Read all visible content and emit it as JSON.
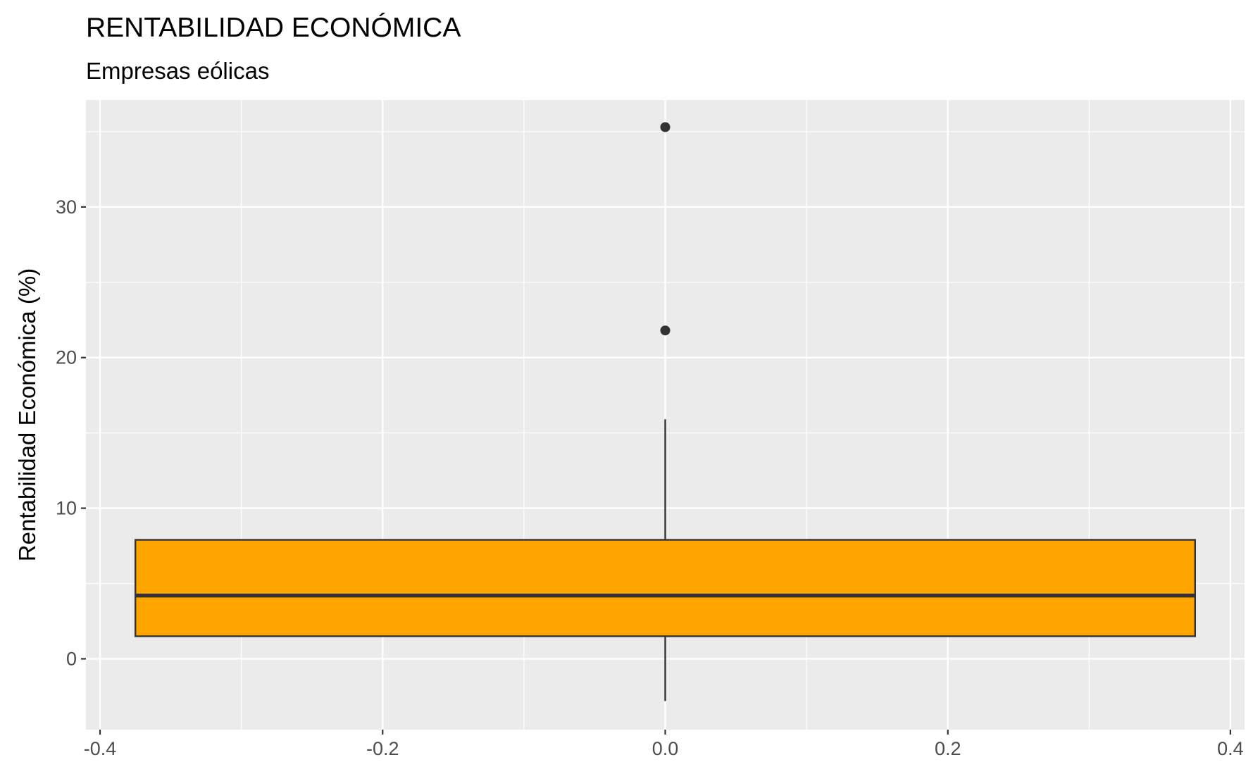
{
  "chart_data": {
    "type": "boxplot",
    "title": "RENTABILIDAD ECONÓMICA",
    "subtitle": "Empresas eólicas",
    "xlabel": "",
    "ylabel": "Rentabilidad Económica (%)",
    "xlim": [
      -0.41,
      0.41
    ],
    "ylim": [
      -4.7,
      37.1
    ],
    "x_ticks": [
      -0.4,
      -0.2,
      0.0,
      0.2,
      0.4
    ],
    "x_tick_labels": [
      "-0.4",
      "-0.2",
      "0.0",
      "0.2",
      "0.4"
    ],
    "y_ticks": [
      0,
      10,
      20,
      30
    ],
    "y_tick_labels": [
      "0",
      "10",
      "20",
      "30"
    ],
    "grid": true,
    "legend": "none",
    "box": {
      "x_center": 0.0,
      "x_min": -0.375,
      "x_max": 0.375,
      "q1": 1.5,
      "median": 4.2,
      "q3": 7.9,
      "whisker_low": -2.8,
      "whisker_high": 15.9
    },
    "outliers": [
      {
        "x": 0.0,
        "y": 21.8
      },
      {
        "x": 0.0,
        "y": 35.3
      }
    ],
    "colors": {
      "panel_background": "#ebebeb",
      "grid": "#ffffff",
      "box_fill": "#ffa500",
      "box_line": "#333333",
      "tick_text": "#4d4d4d"
    }
  }
}
